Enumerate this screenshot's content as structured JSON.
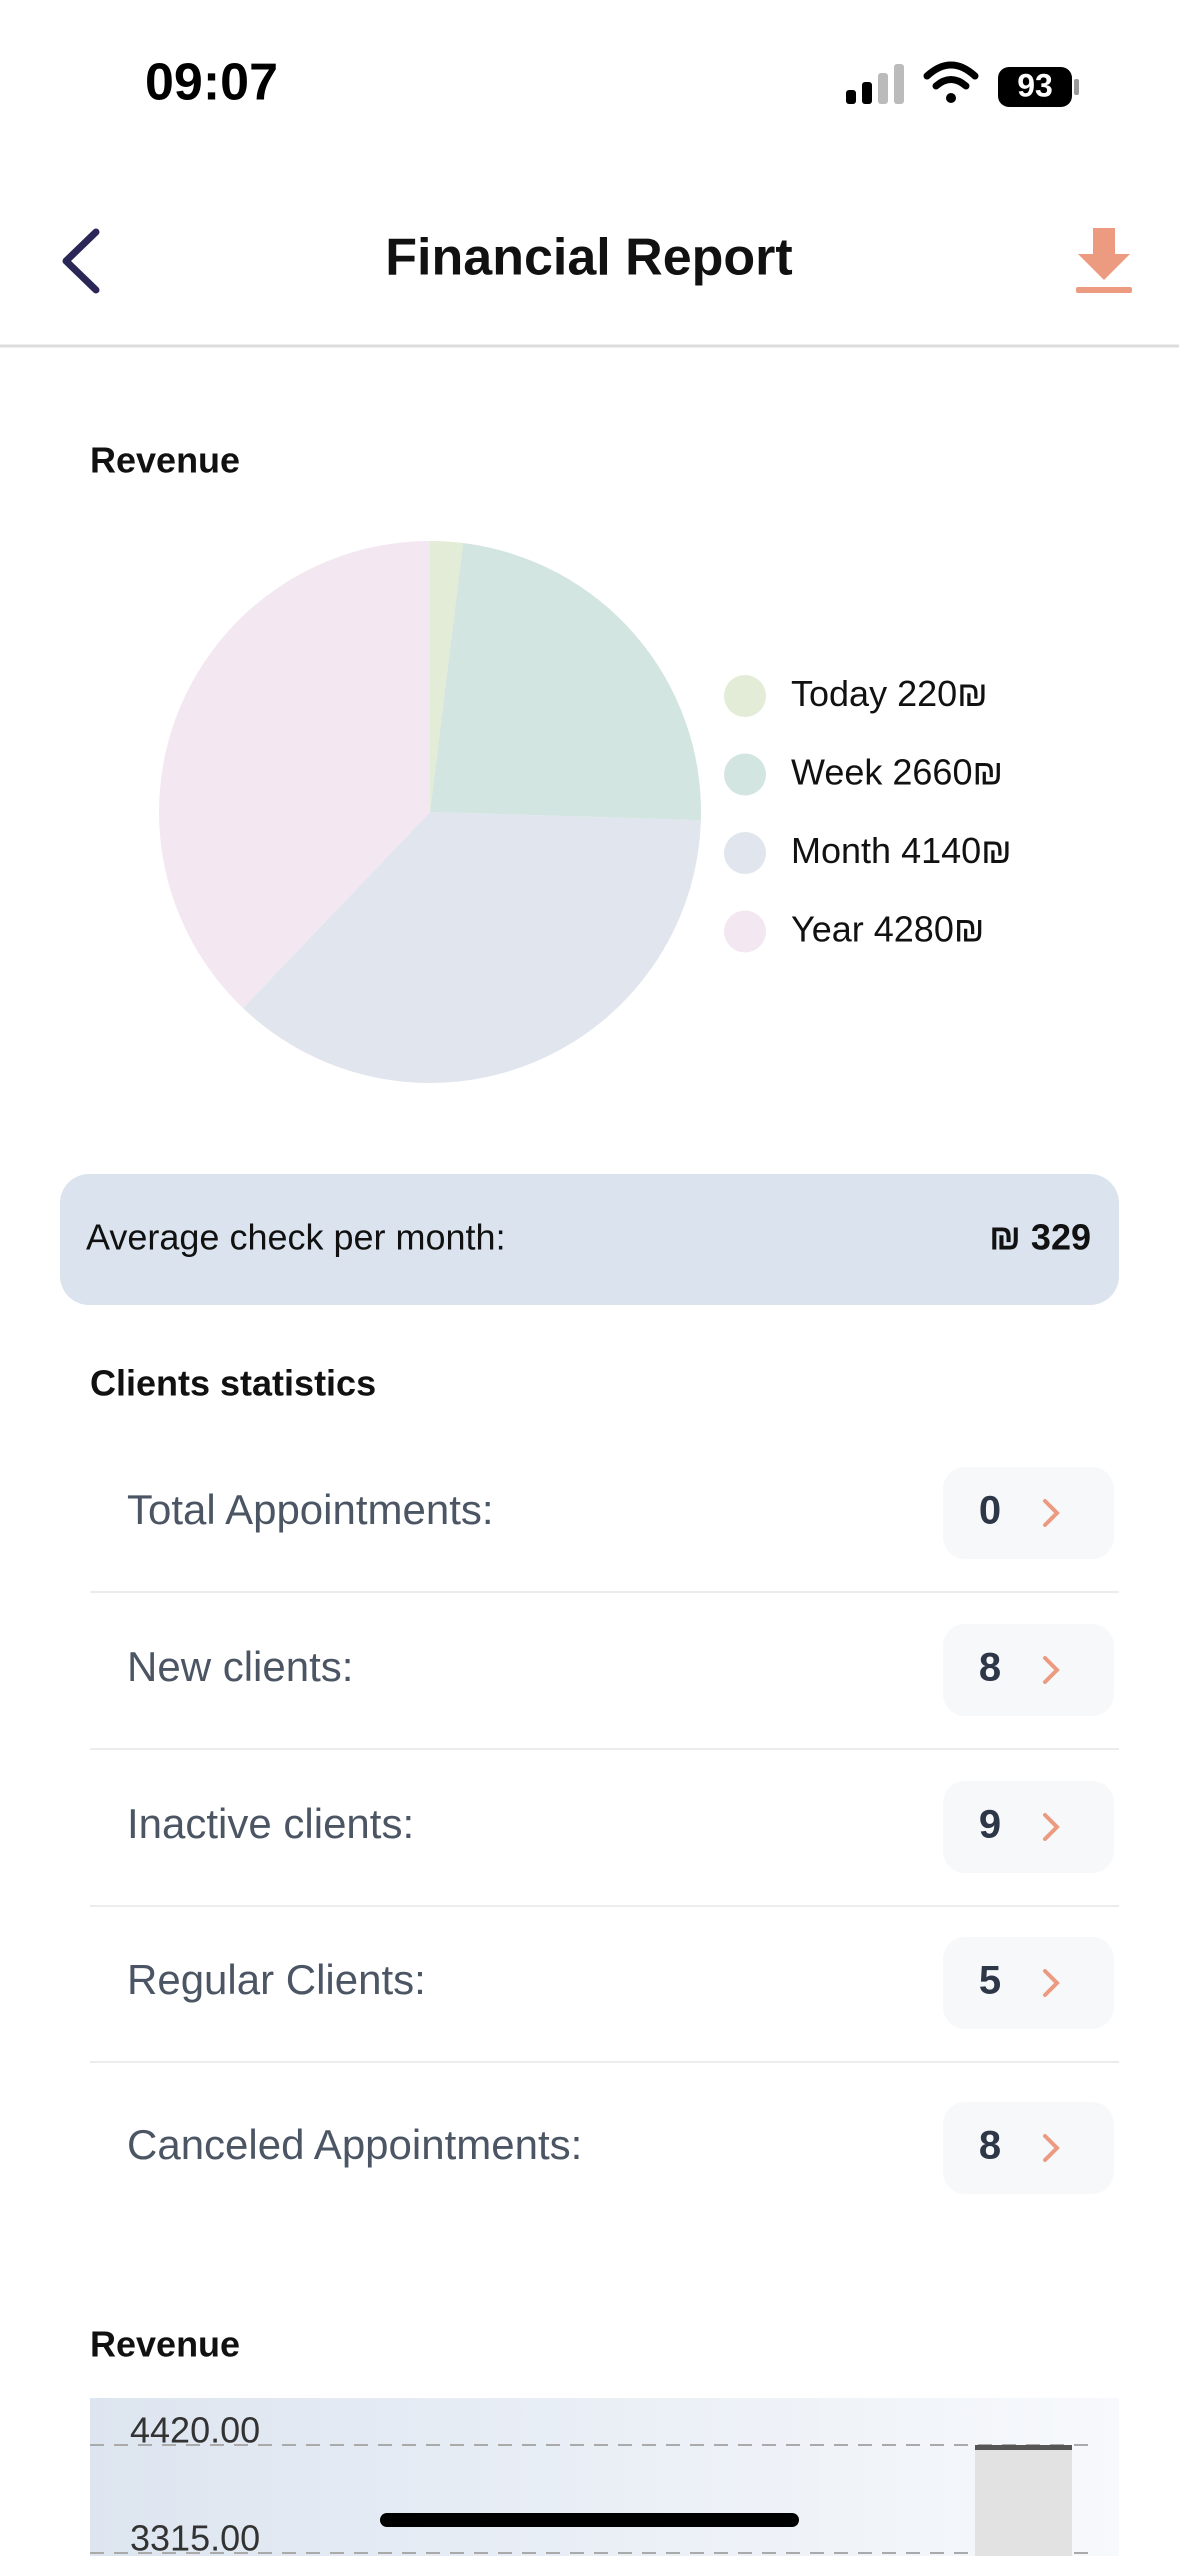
{
  "status": {
    "time": "09:07",
    "battery": "93"
  },
  "header": {
    "title": "Financial Report"
  },
  "chart_data": [
    {
      "type": "pie",
      "title": "Revenue",
      "categories": [
        "Today",
        "Week",
        "Month",
        "Year"
      ],
      "values": [
        220,
        2660,
        4140,
        4280
      ],
      "value_labels": [
        "220₪",
        "2660₪",
        "4140₪",
        "4280₪"
      ],
      "colors": [
        "#e2ecd6",
        "#d3e5e1",
        "#e0e5ee",
        "#f3e8f1"
      ]
    },
    {
      "type": "bar",
      "title": "Revenue",
      "categories": [
        null
      ],
      "values": [
        4420
      ],
      "color": "#e2e2e2",
      "ylim": [
        3315,
        4420
      ],
      "yticks": [
        {
          "value": 4420,
          "label": "4420.00"
        },
        {
          "value": 3315,
          "label": "3315.00"
        }
      ],
      "grid": true
    }
  ],
  "average": {
    "label": "Average check per month:",
    "value": "₪ 329"
  },
  "clients": {
    "title": "Clients statistics",
    "rows": [
      [
        "Total Appointments:",
        0
      ],
      [
        "New clients:",
        8
      ],
      [
        "Inactive clients:",
        9
      ],
      [
        "Regular Clients:",
        5
      ],
      [
        "Canceled Appointments:",
        8
      ]
    ]
  }
}
